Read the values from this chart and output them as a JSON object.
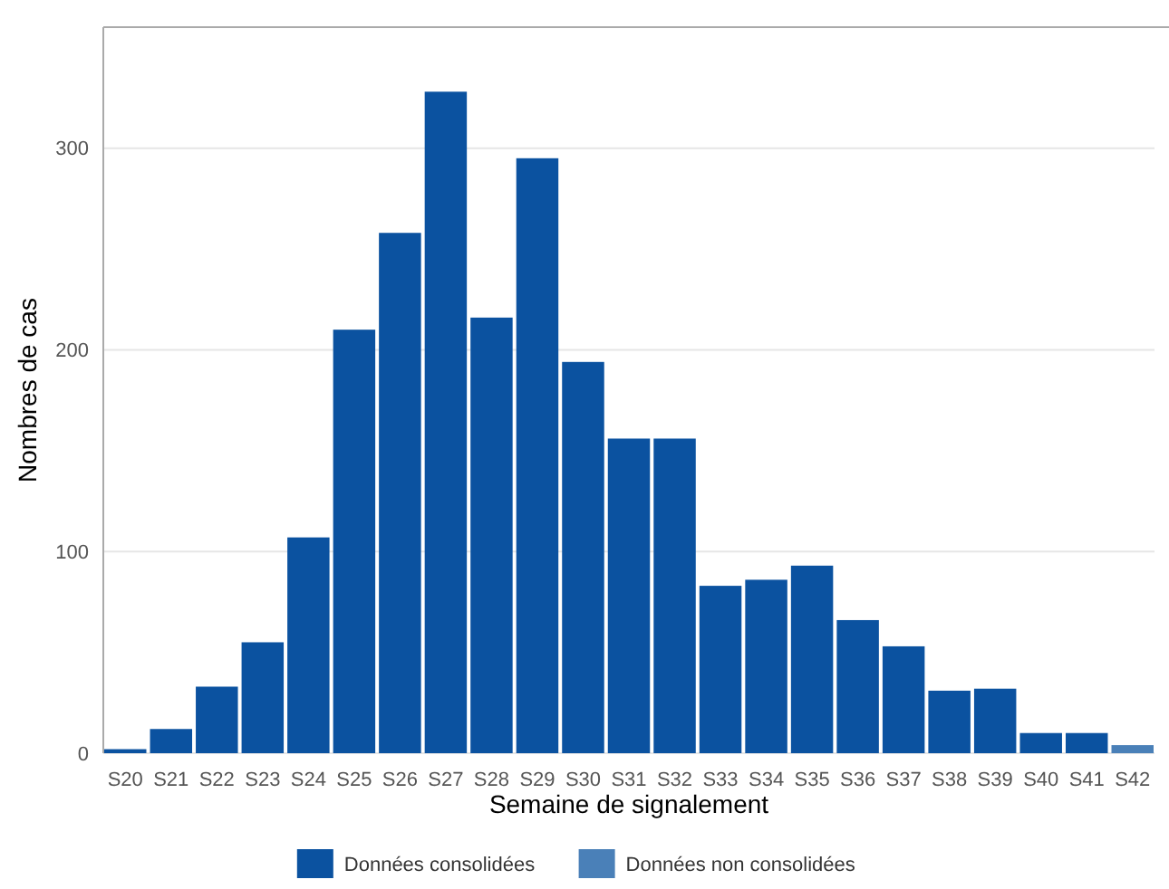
{
  "chart_data": {
    "type": "bar",
    "xlabel": "Semaine de signalement",
    "ylabel": "Nombres de cas",
    "categories": [
      "S20",
      "S21",
      "S22",
      "S23",
      "S24",
      "S25",
      "S26",
      "S27",
      "S28",
      "S29",
      "S30",
      "S31",
      "S32",
      "S33",
      "S34",
      "S35",
      "S36",
      "S37",
      "S38",
      "S39",
      "S40",
      "S41",
      "S42"
    ],
    "series": [
      {
        "name": "Données consolidées",
        "color": "#0b52a0",
        "values": [
          2,
          12,
          33,
          55,
          107,
          210,
          258,
          328,
          216,
          295,
          194,
          156,
          156,
          83,
          86,
          93,
          66,
          53,
          31,
          32,
          10,
          10,
          null
        ]
      },
      {
        "name": "Données non consolidées",
        "color": "#4a80b8",
        "values": [
          null,
          null,
          null,
          null,
          null,
          null,
          null,
          null,
          null,
          null,
          null,
          null,
          null,
          null,
          null,
          null,
          null,
          null,
          null,
          null,
          null,
          null,
          4
        ]
      }
    ],
    "ylim": [
      0,
      360
    ],
    "yticks": [
      0,
      100,
      200,
      300
    ],
    "grid": "y",
    "legend": "bottom"
  }
}
